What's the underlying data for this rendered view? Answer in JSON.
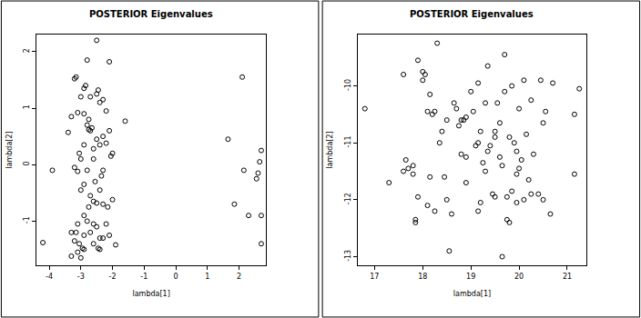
{
  "chart_data": [
    {
      "type": "scatter",
      "title": "POSTERIOR Eigenvalues",
      "x_label": "lambda[1]",
      "y_label": "lambda[2]",
      "color": "#000000",
      "marker": "circle-open",
      "xlim": [
        -4.4,
        2.85
      ],
      "xticks": [
        -4,
        -3,
        -2,
        -1,
        0,
        1,
        2
      ],
      "ylim": [
        -1.78,
        2.3
      ],
      "yticks": [
        -1,
        0,
        1,
        2
      ],
      "x": [
        -2.5,
        -2.1,
        -2.8,
        -3.2,
        -3.15,
        -2.45,
        -2.5,
        -2.85,
        -2.9,
        -3.0,
        -2.7,
        -2.4,
        -2.3,
        -3.1,
        -3.3,
        -2.9,
        -2.2,
        -2.8,
        -2.75,
        -2.7,
        -2.65,
        -2.1,
        -2.3,
        -2.5,
        -2.4,
        -2.2,
        -2.9,
        -3.05,
        -2.6,
        -2.0,
        -2.05,
        -2.6,
        -3.0,
        -3.2,
        -3.1,
        -2.8,
        -2.3,
        -2.9,
        -2.4,
        -3.0,
        -2.7,
        -2.6,
        -2.5,
        -2.3,
        -2.0,
        -2.75,
        -2.15,
        -2.9,
        -3.1,
        -2.8,
        -2.6,
        -2.5,
        -2.2,
        -3.3,
        -3.15,
        -2.9,
        -2.7,
        -2.4,
        -2.3,
        -2.1,
        -3.2,
        -3.05,
        -2.6,
        -2.45,
        -2.4,
        -1.9,
        -2.95,
        -2.9,
        -3.1,
        -3.0,
        -3.3,
        -2.55,
        -2.35,
        -2.75,
        -4.2,
        -3.9,
        -3.4,
        -1.6,
        1.65,
        2.1,
        2.15,
        1.85,
        2.3,
        2.7,
        2.65,
        2.6,
        2.55,
        2.7,
        2.7
      ],
      "values": [
        2.2,
        1.82,
        1.85,
        1.52,
        1.55,
        1.32,
        1.25,
        1.4,
        1.35,
        1.2,
        1.2,
        1.1,
        1.15,
        0.92,
        0.85,
        0.9,
        0.95,
        0.7,
        0.62,
        0.6,
        0.65,
        0.6,
        0.5,
        0.45,
        0.35,
        0.38,
        0.35,
        0.2,
        0.28,
        0.2,
        0.15,
        0.1,
        0.1,
        -0.05,
        -0.12,
        -0.1,
        -0.1,
        -0.35,
        -0.45,
        -0.45,
        -0.55,
        -0.65,
        -0.68,
        -0.7,
        -0.62,
        -0.75,
        -0.75,
        -0.9,
        -1.05,
        -1.0,
        -1.05,
        -1.1,
        -1.05,
        -1.2,
        -1.2,
        -1.25,
        -1.2,
        -1.3,
        -1.3,
        -1.25,
        -1.35,
        -1.4,
        -1.4,
        -1.48,
        -1.5,
        -1.42,
        -1.48,
        -1.5,
        -1.55,
        -1.65,
        -1.62,
        -0.3,
        -0.2,
        0.8,
        -1.38,
        -0.1,
        0.57,
        0.77,
        0.45,
        1.55,
        -0.1,
        -0.7,
        -0.9,
        0.25,
        0.05,
        -0.15,
        -0.25,
        -0.9,
        -1.4
      ]
    },
    {
      "type": "scatter",
      "title": "POSTERIOR Eigenvalues",
      "x_label": "lambda[1]",
      "y_label": "lambda[2]",
      "color": "#000000",
      "marker": "circle-open",
      "xlim": [
        16.65,
        21.4
      ],
      "xticks": [
        17,
        18,
        19,
        20,
        21
      ],
      "ylim": [
        -13.15,
        -9.1
      ],
      "yticks": [
        -13,
        -12,
        -11,
        -10
      ],
      "x": [
        16.8,
        17.6,
        17.3,
        17.65,
        17.6,
        17.7,
        17.8,
        17.8,
        17.85,
        17.85,
        17.9,
        17.9,
        18.0,
        18.05,
        18.1,
        18.15,
        18.2,
        18.25,
        18.15,
        18.1,
        18.25,
        18.3,
        18.35,
        18.4,
        18.5,
        18.45,
        18.55,
        18.6,
        18.65,
        18.7,
        18.75,
        18.8,
        18.85,
        18.9,
        18.9,
        18.9,
        19.0,
        19.05,
        19.1,
        19.15,
        19.15,
        19.2,
        19.2,
        19.25,
        19.3,
        19.3,
        19.35,
        19.35,
        19.4,
        19.45,
        19.5,
        19.5,
        19.55,
        19.6,
        19.6,
        19.65,
        19.65,
        19.7,
        19.7,
        19.75,
        19.75,
        19.8,
        19.8,
        19.85,
        19.85,
        19.9,
        19.95,
        19.95,
        19.95,
        20.0,
        20.0,
        20.05,
        20.1,
        20.1,
        20.15,
        20.2,
        20.25,
        20.25,
        20.3,
        20.4,
        20.45,
        20.5,
        20.5,
        20.55,
        20.65,
        20.7,
        21.15,
        21.15,
        21.25,
        18.0,
        19.15,
        18.5,
        18.8,
        19.5
      ],
      "values": [
        -10.4,
        -9.8,
        -11.7,
        -11.3,
        -11.5,
        -11.45,
        -11.55,
        -11.4,
        -12.35,
        -12.4,
        -11.95,
        -9.55,
        -9.75,
        -9.8,
        -10.45,
        -10.15,
        -10.5,
        -10.45,
        -11.6,
        -12.1,
        -12.2,
        -9.25,
        -11.0,
        -10.8,
        -10.6,
        -11.6,
        -12.9,
        -12.25,
        -10.3,
        -10.4,
        -10.7,
        -10.6,
        -10.6,
        -10.55,
        -11.25,
        -11.7,
        -10.1,
        -10.45,
        -11.05,
        -11.0,
        -12.2,
        -12.05,
        -10.8,
        -11.35,
        -10.3,
        -11.5,
        -9.65,
        -11.15,
        -11.05,
        -11.9,
        -11.95,
        -10.9,
        -10.3,
        -10.65,
        -11.25,
        -11.4,
        -13.0,
        -9.45,
        -10.1,
        -11.95,
        -12.35,
        -12.4,
        -10.9,
        -10.0,
        -11.85,
        -11.0,
        -11.15,
        -11.55,
        -12.05,
        -10.4,
        -11.45,
        -11.3,
        -12.0,
        -9.9,
        -10.85,
        -11.65,
        -10.25,
        -11.9,
        -11.2,
        -11.9,
        -9.9,
        -12.0,
        -10.65,
        -10.45,
        -12.25,
        -9.95,
        -10.5,
        -11.55,
        -10.05,
        -9.9,
        -9.95,
        -12.0,
        -11.2,
        -10.8
      ]
    }
  ]
}
